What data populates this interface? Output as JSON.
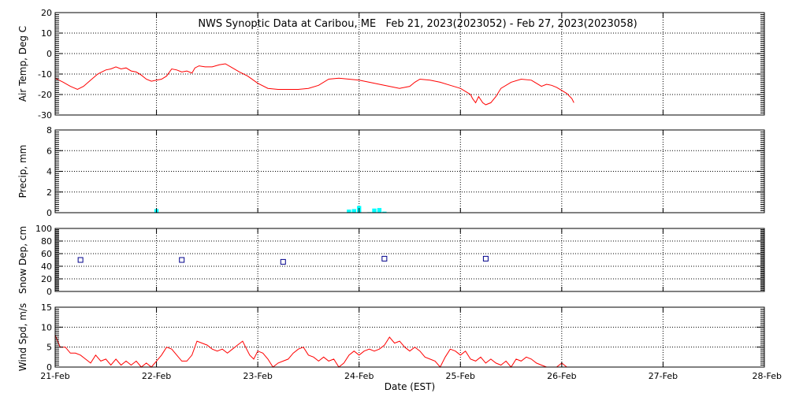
{
  "chart_data": {
    "title": "NWS Synoptic Data at Caribou, ME   Feb 21, 2023(2023052) - Feb 27, 2023(2023058)",
    "xlabel": "Date (EST)",
    "x_ticks": [
      "21-Feb",
      "22-Feb",
      "23-Feb",
      "24-Feb",
      "25-Feb",
      "26-Feb",
      "27-Feb",
      "28-Feb"
    ],
    "x_range_days": [
      0,
      7
    ],
    "grid": true,
    "colors": {
      "temp": "#ff0000",
      "precip": "#00ffff",
      "snow": "#00008b",
      "wind": "#ff0000",
      "grid": "#000000"
    },
    "panels": [
      {
        "id": "temp",
        "type": "line",
        "ylabel": "Air Temp, Deg C",
        "ylim": [
          -30,
          20
        ],
        "yticks": [
          -30,
          -20,
          -10,
          0,
          10,
          20
        ],
        "points": [
          [
            0.0,
            -12
          ],
          [
            0.08,
            -14
          ],
          [
            0.15,
            -16
          ],
          [
            0.22,
            -17.5
          ],
          [
            0.28,
            -16
          ],
          [
            0.35,
            -13
          ],
          [
            0.42,
            -10
          ],
          [
            0.5,
            -8
          ],
          [
            0.55,
            -7.5
          ],
          [
            0.6,
            -6.5
          ],
          [
            0.65,
            -7.5
          ],
          [
            0.7,
            -7
          ],
          [
            0.75,
            -8.5
          ],
          [
            0.8,
            -9
          ],
          [
            0.85,
            -10.5
          ],
          [
            0.9,
            -12.5
          ],
          [
            0.95,
            -13.5
          ],
          [
            1.0,
            -13
          ],
          [
            1.05,
            -12.5
          ],
          [
            1.1,
            -11
          ],
          [
            1.15,
            -7.5
          ],
          [
            1.2,
            -8
          ],
          [
            1.25,
            -9
          ],
          [
            1.3,
            -8.5
          ],
          [
            1.35,
            -9.5
          ],
          [
            1.38,
            -7
          ],
          [
            1.42,
            -6
          ],
          [
            1.48,
            -6.5
          ],
          [
            1.55,
            -6.5
          ],
          [
            1.62,
            -5.5
          ],
          [
            1.68,
            -5
          ],
          [
            1.75,
            -7
          ],
          [
            1.82,
            -9
          ],
          [
            1.9,
            -11
          ],
          [
            2.0,
            -14.5
          ],
          [
            2.1,
            -17
          ],
          [
            2.2,
            -17.5
          ],
          [
            2.3,
            -17.5
          ],
          [
            2.4,
            -17.5
          ],
          [
            2.5,
            -17
          ],
          [
            2.6,
            -15.5
          ],
          [
            2.7,
            -12.5
          ],
          [
            2.8,
            -12
          ],
          [
            2.9,
            -12.5
          ],
          [
            3.0,
            -13
          ],
          [
            3.1,
            -14
          ],
          [
            3.2,
            -15
          ],
          [
            3.3,
            -16
          ],
          [
            3.4,
            -17
          ],
          [
            3.5,
            -16
          ],
          [
            3.55,
            -14
          ],
          [
            3.6,
            -12.5
          ],
          [
            3.7,
            -13
          ],
          [
            3.8,
            -14
          ],
          [
            3.9,
            -15.5
          ],
          [
            4.0,
            -17
          ],
          [
            4.05,
            -18.5
          ],
          [
            4.1,
            -20
          ],
          [
            4.12,
            -22
          ],
          [
            4.15,
            -24
          ],
          [
            4.18,
            -21
          ],
          [
            4.22,
            -24
          ],
          [
            4.25,
            -25
          ],
          [
            4.3,
            -24
          ],
          [
            4.35,
            -21
          ],
          [
            4.4,
            -17
          ],
          [
            4.5,
            -14
          ],
          [
            4.6,
            -12.5
          ],
          [
            4.7,
            -13
          ],
          [
            4.75,
            -14.5
          ],
          [
            4.8,
            -16
          ],
          [
            4.85,
            -15
          ],
          [
            4.9,
            -15.5
          ],
          [
            4.95,
            -16.5
          ],
          [
            5.0,
            -18
          ],
          [
            5.05,
            -19.5
          ],
          [
            5.1,
            -22
          ],
          [
            5.12,
            -24
          ]
        ]
      },
      {
        "id": "precip",
        "type": "bar",
        "ylabel": "Precip, mm",
        "ylim": [
          0,
          8
        ],
        "yticks": [
          0,
          2,
          4,
          6,
          8
        ],
        "bars": [
          [
            1.0,
            0.35
          ],
          [
            2.9,
            0.3
          ],
          [
            2.95,
            0.35
          ],
          [
            3.0,
            0.65
          ],
          [
            3.1,
            0.05
          ],
          [
            3.15,
            0.4
          ],
          [
            3.2,
            0.45
          ],
          [
            3.25,
            0.1
          ]
        ]
      },
      {
        "id": "snow",
        "type": "scatter",
        "ylabel": "Snow Dep, cm",
        "ylim": [
          0,
          100
        ],
        "yticks": [
          0,
          20,
          40,
          60,
          80,
          100
        ],
        "points": [
          [
            0.25,
            50
          ],
          [
            1.25,
            50
          ],
          [
            2.25,
            47
          ],
          [
            3.25,
            52
          ],
          [
            4.25,
            52
          ]
        ]
      },
      {
        "id": "wind",
        "type": "line",
        "ylabel": "Wind Spd, m/s",
        "ylim": [
          0,
          15
        ],
        "yticks": [
          0,
          5,
          10,
          15
        ],
        "points": [
          [
            0.0,
            8
          ],
          [
            0.05,
            5
          ],
          [
            0.1,
            5
          ],
          [
            0.15,
            3.5
          ],
          [
            0.2,
            3.5
          ],
          [
            0.25,
            3
          ],
          [
            0.3,
            2
          ],
          [
            0.35,
            1
          ],
          [
            0.4,
            3
          ],
          [
            0.45,
            1.5
          ],
          [
            0.5,
            2
          ],
          [
            0.55,
            0.5
          ],
          [
            0.6,
            2
          ],
          [
            0.65,
            0.5
          ],
          [
            0.7,
            1.5
          ],
          [
            0.75,
            0.5
          ],
          [
            0.8,
            1.5
          ],
          [
            0.85,
            0
          ],
          [
            0.9,
            1
          ],
          [
            0.95,
            0
          ],
          [
            1.0,
            1.5
          ],
          [
            1.05,
            3
          ],
          [
            1.1,
            5
          ],
          [
            1.15,
            4.5
          ],
          [
            1.2,
            3
          ],
          [
            1.25,
            1.5
          ],
          [
            1.3,
            1.5
          ],
          [
            1.35,
            3
          ],
          [
            1.4,
            6.5
          ],
          [
            1.45,
            6
          ],
          [
            1.5,
            5.5
          ],
          [
            1.55,
            4.5
          ],
          [
            1.6,
            4
          ],
          [
            1.65,
            4.5
          ],
          [
            1.7,
            3.5
          ],
          [
            1.75,
            4.5
          ],
          [
            1.8,
            5.5
          ],
          [
            1.85,
            6.5
          ],
          [
            1.88,
            5
          ],
          [
            1.92,
            3
          ],
          [
            1.96,
            2
          ],
          [
            2.0,
            4
          ],
          [
            2.05,
            3.5
          ],
          [
            2.1,
            2
          ],
          [
            2.15,
            0
          ],
          [
            2.2,
            1
          ],
          [
            2.25,
            1.5
          ],
          [
            2.3,
            2
          ],
          [
            2.35,
            3.5
          ],
          [
            2.4,
            4.5
          ],
          [
            2.45,
            5
          ],
          [
            2.5,
            3
          ],
          [
            2.55,
            2.5
          ],
          [
            2.6,
            1.5
          ],
          [
            2.65,
            2.5
          ],
          [
            2.7,
            1.5
          ],
          [
            2.75,
            2
          ],
          [
            2.8,
            0
          ],
          [
            2.85,
            1
          ],
          [
            2.9,
            3
          ],
          [
            2.95,
            4
          ],
          [
            3.0,
            3
          ],
          [
            3.05,
            4
          ],
          [
            3.1,
            4.5
          ],
          [
            3.15,
            4
          ],
          [
            3.2,
            4.5
          ],
          [
            3.25,
            5.5
          ],
          [
            3.3,
            7.5
          ],
          [
            3.35,
            6
          ],
          [
            3.4,
            6.5
          ],
          [
            3.45,
            5
          ],
          [
            3.5,
            4
          ],
          [
            3.55,
            5
          ],
          [
            3.6,
            4
          ],
          [
            3.65,
            2.5
          ],
          [
            3.7,
            2
          ],
          [
            3.75,
            1.5
          ],
          [
            3.8,
            0
          ],
          [
            3.85,
            2.5
          ],
          [
            3.9,
            4.5
          ],
          [
            3.95,
            4
          ],
          [
            4.0,
            3
          ],
          [
            4.05,
            4
          ],
          [
            4.1,
            2
          ],
          [
            4.15,
            1.5
          ],
          [
            4.2,
            2.5
          ],
          [
            4.25,
            1
          ],
          [
            4.3,
            2
          ],
          [
            4.35,
            1
          ],
          [
            4.4,
            0.5
          ],
          [
            4.45,
            1.5
          ],
          [
            4.5,
            0
          ],
          [
            4.55,
            2
          ],
          [
            4.6,
            1.5
          ],
          [
            4.65,
            2.5
          ],
          [
            4.7,
            2
          ],
          [
            4.75,
            1
          ],
          [
            4.8,
            0.5
          ],
          [
            4.85,
            0
          ],
          [
            4.9,
            0
          ],
          [
            4.95,
            0
          ],
          [
            5.0,
            1
          ],
          [
            5.05,
            0
          ]
        ]
      }
    ]
  }
}
